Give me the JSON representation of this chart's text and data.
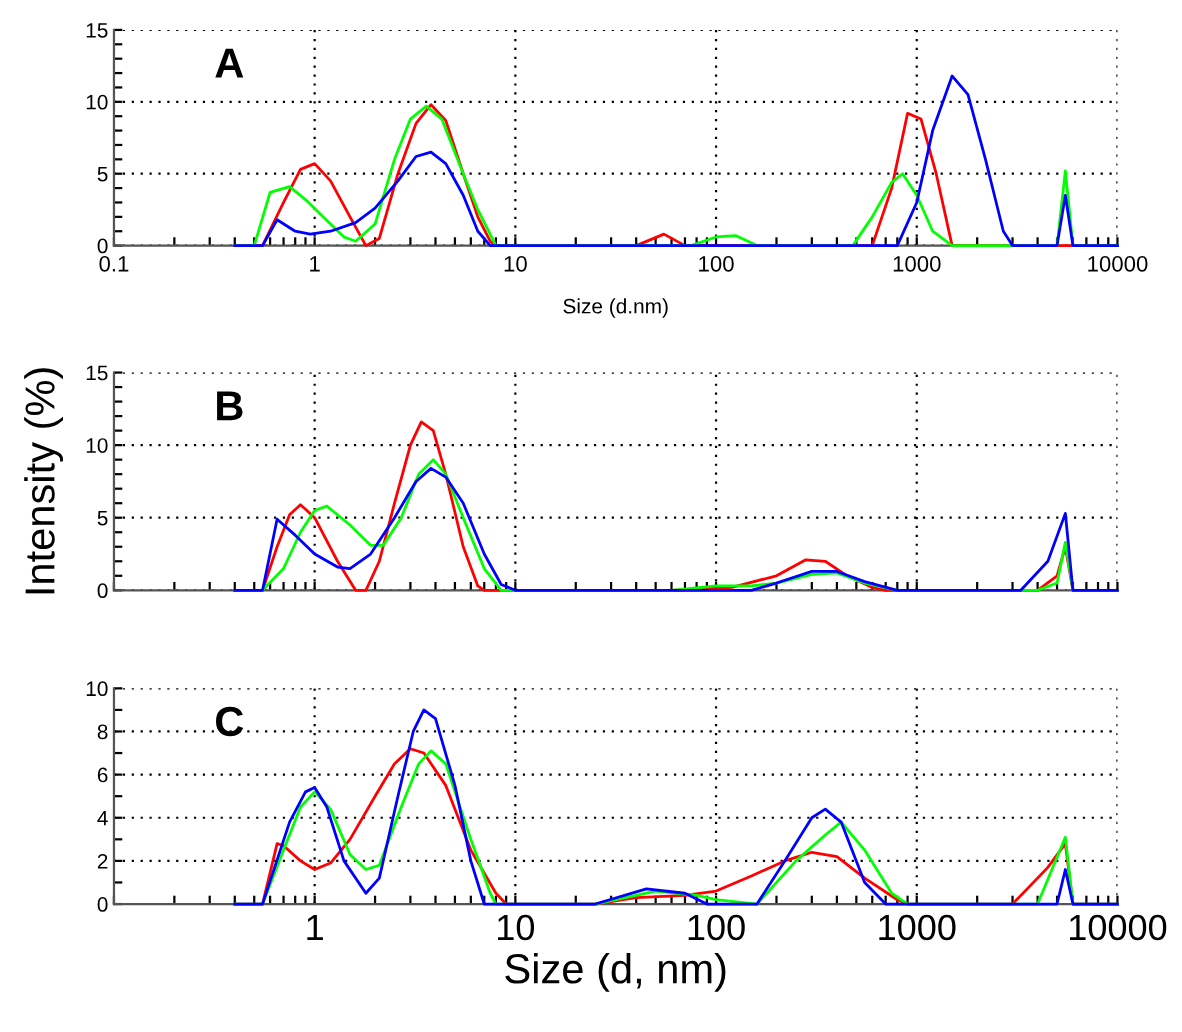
{
  "chart_data": [
    {
      "type": "line",
      "xlabel": "Size (d.nm)",
      "annotations": [
        "A"
      ],
      "xlim": [
        0.1,
        10000
      ],
      "ylim": [
        0,
        15
      ],
      "xticks": [
        0.1,
        1,
        10,
        100,
        1000,
        10000
      ],
      "yticks": [
        0,
        5,
        10,
        15
      ],
      "log": "x",
      "grid": true,
      "legend": false,
      "series": [
        {
          "color": "#ff0000",
          "x": [
            0.4,
            0.55,
            0.7,
            0.85,
            1.0,
            1.2,
            1.5,
            1.8,
            2.1,
            2.6,
            3.2,
            3.8,
            4.5,
            5.5,
            6.5,
            7.5,
            8,
            40,
            55,
            70,
            600,
            750,
            900,
            1050,
            1250,
            1500,
            10000
          ],
          "values": [
            0,
            0,
            3,
            5.3,
            5.7,
            4.5,
            2,
            0,
            0.5,
            5,
            8.5,
            9.8,
            8.7,
            5,
            2,
            0.3,
            0,
            0,
            0.8,
            0,
            0,
            4,
            9.2,
            8.8,
            5,
            0,
            0
          ]
        },
        {
          "color": "#00ff00",
          "x": [
            0.4,
            0.5,
            0.6,
            0.75,
            0.9,
            1.1,
            1.4,
            1.6,
            2,
            2.5,
            3,
            3.6,
            4.3,
            5.5,
            6.5,
            8,
            75,
            100,
            125,
            160,
            480,
            600,
            750,
            850,
            1000,
            1200,
            1500,
            5000,
            5500,
            6000,
            10000
          ],
          "values": [
            0,
            0,
            3.7,
            4.1,
            3.2,
            2,
            0.6,
            0.3,
            1.5,
            6,
            8.8,
            9.7,
            8.8,
            5,
            2.5,
            0,
            0,
            0.6,
            0.7,
            0,
            0,
            2,
            4.4,
            5,
            3.5,
            1,
            0,
            0,
            5.2,
            0,
            0
          ]
        },
        {
          "color": "#0000ff",
          "x": [
            0.4,
            0.55,
            0.65,
            0.8,
            0.95,
            1.2,
            1.6,
            2,
            2.6,
            3.2,
            3.8,
            4.5,
            5.5,
            6.5,
            7.5,
            800,
            1000,
            1200,
            1500,
            1800,
            2200,
            2700,
            3000,
            5000,
            5500,
            6000,
            10000
          ],
          "values": [
            0,
            0,
            1.8,
            1,
            0.8,
            1,
            1.6,
            2.6,
            4.5,
            6.2,
            6.5,
            5.7,
            3.5,
            1,
            0,
            0,
            3,
            8,
            11.8,
            10.5,
            6,
            1,
            0,
            0,
            3.5,
            0,
            0
          ]
        }
      ]
    },
    {
      "type": "line",
      "ylabel": "Intensity (%)",
      "annotations": [
        "B"
      ],
      "xlim": [
        0.1,
        10000
      ],
      "ylim": [
        0,
        15
      ],
      "xticks": [
        0.1,
        1,
        10,
        100,
        1000,
        10000
      ],
      "yticks": [
        0,
        5,
        10,
        15
      ],
      "log": "x",
      "grid": true,
      "legend": false,
      "tick_labels": "y",
      "series": [
        {
          "color": "#ff0000",
          "x": [
            0.4,
            0.55,
            0.65,
            0.75,
            0.85,
            1,
            1.3,
            1.6,
            1.8,
            2.1,
            2.5,
            3,
            3.4,
            3.9,
            4.5,
            5.5,
            6.5,
            7,
            60,
            120,
            200,
            280,
            350,
            450,
            600,
            700,
            4000,
            5000,
            5500,
            6000,
            10000
          ],
          "values": [
            0,
            0,
            3,
            5.2,
            5.9,
            5,
            2,
            0,
            0,
            2,
            6,
            10,
            11.6,
            11,
            8,
            3,
            0.3,
            0,
            0,
            0.2,
            1,
            2.1,
            2,
            1,
            0.2,
            0,
            0,
            1,
            3,
            0,
            0
          ]
        },
        {
          "color": "#00ff00",
          "x": [
            0.4,
            0.55,
            0.7,
            0.85,
            1,
            1.15,
            1.5,
            1.9,
            2.2,
            2.7,
            3.3,
            3.9,
            4.5,
            5.5,
            7,
            8.5,
            60,
            100,
            150,
            200,
            300,
            400,
            550,
            800,
            4000,
            5000,
            5500,
            6000,
            10000
          ],
          "values": [
            0,
            0,
            1.5,
            4,
            5.5,
            5.8,
            4.5,
            3.1,
            3.1,
            5,
            8,
            9,
            8,
            5,
            1.5,
            0,
            0,
            0.3,
            0.3,
            0.5,
            1.1,
            1.2,
            0.5,
            0,
            0,
            0.5,
            3.3,
            0,
            0
          ]
        },
        {
          "color": "#0000ff",
          "x": [
            0.4,
            0.55,
            0.65,
            0.8,
            1,
            1.3,
            1.5,
            1.9,
            2.5,
            3.2,
            3.8,
            4.5,
            5.5,
            7,
            8.5,
            10,
            150,
            200,
            300,
            400,
            550,
            800,
            3300,
            4500,
            5500,
            6000,
            10000
          ],
          "values": [
            0,
            0,
            4.9,
            3.8,
            2.5,
            1.6,
            1.5,
            2.5,
            5,
            7.5,
            8.4,
            7.8,
            6,
            2.5,
            0.4,
            0,
            0,
            0.5,
            1.3,
            1.3,
            0.6,
            0,
            0,
            2,
            5.3,
            0,
            0
          ]
        }
      ]
    },
    {
      "type": "line",
      "xlabel": "Size (d, nm)",
      "annotations": [
        "C"
      ],
      "xlim": [
        0.1,
        10000
      ],
      "ylim": [
        0,
        10
      ],
      "xticks": [
        {
          "value": 0.1,
          "label": null
        },
        1,
        10,
        100,
        1000,
        10000
      ],
      "yticks": [
        0,
        2,
        4,
        6,
        8,
        10
      ],
      "log": "x",
      "grid": true,
      "legend": false,
      "series": [
        {
          "color": "#ff0000",
          "x": [
            0.4,
            0.55,
            0.65,
            0.7,
            0.85,
            1,
            1.2,
            1.5,
            2,
            2.5,
            3,
            3.5,
            4.5,
            6,
            8,
            9,
            25,
            40,
            70,
            100,
            150,
            220,
            300,
            400,
            550,
            800,
            900,
            3000,
            4500,
            5500,
            6000,
            10000
          ],
          "values": [
            0,
            0,
            2.8,
            2.7,
            2,
            1.6,
            1.9,
            3,
            5,
            6.5,
            7.2,
            7,
            5.5,
            2.5,
            0.5,
            0,
            0,
            0.3,
            0.4,
            0.6,
            1.3,
            2,
            2.4,
            2.2,
            1.2,
            0.2,
            0,
            0,
            1.7,
            2.8,
            0,
            0
          ]
        },
        {
          "color": "#00ff00",
          "x": [
            0.4,
            0.55,
            0.7,
            0.85,
            1,
            1.2,
            1.5,
            1.8,
            2.1,
            2.7,
            3.3,
            3.8,
            4.5,
            6,
            7.5,
            8,
            25,
            50,
            80,
            100,
            160,
            250,
            350,
            420,
            550,
            750,
            900,
            4000,
            5500,
            6000,
            10000
          ],
          "values": [
            0,
            0,
            2.5,
            4.5,
            5.2,
            4.4,
            2.3,
            1.6,
            1.8,
            4.5,
            6.5,
            7.1,
            6.5,
            3,
            0.5,
            0,
            0,
            0.6,
            0.4,
            0.2,
            0,
            2,
            3.2,
            3.8,
            2.5,
            0.5,
            0,
            0,
            3.1,
            0,
            0
          ]
        },
        {
          "color": "#0000ff",
          "x": [
            0.4,
            0.55,
            0.75,
            0.9,
            1,
            1.15,
            1.4,
            1.8,
            2.1,
            2.6,
            3.1,
            3.5,
            4,
            5,
            6,
            7,
            25,
            45,
            70,
            90,
            160,
            220,
            300,
            350,
            420,
            550,
            700,
            5000,
            5500,
            6000,
            10000
          ],
          "values": [
            0,
            0,
            3.8,
            5.2,
            5.4,
            4.5,
            2,
            0.5,
            1.2,
            5,
            8,
            9,
            8.6,
            5.5,
            2,
            0,
            0,
            0.7,
            0.5,
            0,
            0,
            2,
            4,
            4.4,
            3.8,
            1,
            0,
            0,
            1.6,
            0,
            0
          ]
        }
      ]
    }
  ]
}
